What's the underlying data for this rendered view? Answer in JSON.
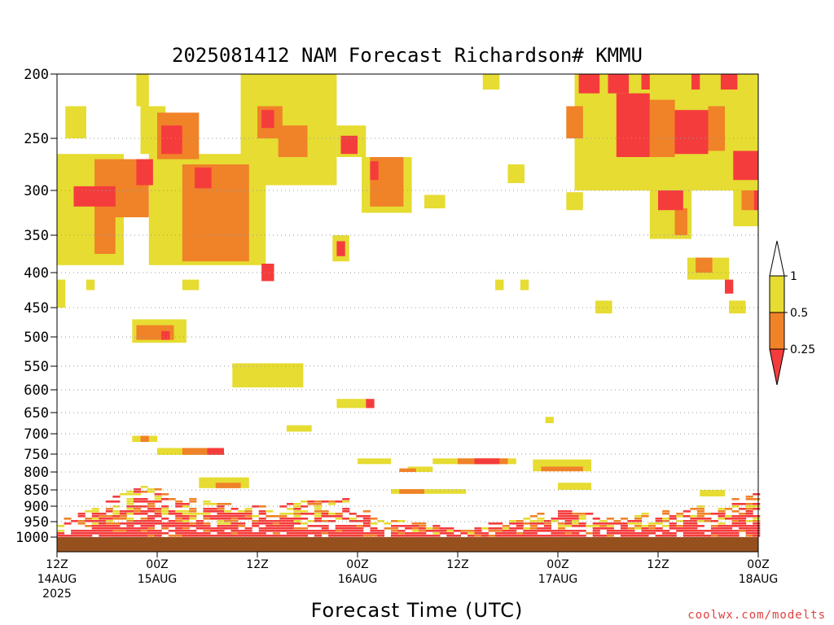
{
  "chart_data": {
    "type": "heatmap",
    "title": "2025081412 NAM Forecast Richardson# KMMU",
    "xlabel": "Forecast Time (UTC)",
    "credit": "coolwx.com/modelts",
    "y_levels": [
      200,
      250,
      300,
      350,
      400,
      450,
      500,
      550,
      600,
      650,
      700,
      750,
      800,
      850,
      900,
      950,
      1000
    ],
    "y_tick_labels": [
      "200",
      "250",
      "300",
      "350",
      "400",
      "450",
      "500",
      "550",
      "600",
      "650",
      "700",
      "750",
      "800",
      "850",
      "900",
      "950",
      "1000"
    ],
    "y_axis": "pressure (hPa), decreasing upward, non-linear",
    "x_range_hours": [
      0,
      84
    ],
    "x_ticks": [
      {
        "hour": 0,
        "l1": "12Z",
        "l2": "14AUG",
        "l3": "2025"
      },
      {
        "hour": 12,
        "l1": "00Z",
        "l2": "15AUG",
        "l3": ""
      },
      {
        "hour": 24,
        "l1": "12Z",
        "l2": "",
        "l3": ""
      },
      {
        "hour": 36,
        "l1": "00Z",
        "l2": "16AUG",
        "l3": ""
      },
      {
        "hour": 48,
        "l1": "12Z",
        "l2": "",
        "l3": ""
      },
      {
        "hour": 60,
        "l1": "00Z",
        "l2": "17AUG",
        "l3": ""
      },
      {
        "hour": 72,
        "l1": "12Z",
        "l2": "",
        "l3": ""
      },
      {
        "hour": 84,
        "l1": "00Z",
        "l2": "18AUG",
        "l3": ""
      }
    ],
    "grid": "dotted at pressure levels",
    "legend": {
      "position": "right",
      "bins": [
        {
          "range": "< 0.25",
          "color": "#f53c3c"
        },
        {
          "range": "0.25 - 0.5",
          "color": "#f08228"
        },
        {
          "range": "0.5 - 1",
          "color": "#e6dc32"
        }
      ],
      "labels": [
        "1",
        "0.5",
        "0.25"
      ]
    },
    "ground_color": "#96501e",
    "ground_top_hpa": 1000,
    "regions": [
      {
        "class": "yellow",
        "h0": 0,
        "h1": 8,
        "p0": 265,
        "p1": 390
      },
      {
        "class": "yellow",
        "h0": 1,
        "h1": 3.5,
        "p0": 225,
        "p1": 250
      },
      {
        "class": "orange",
        "h0": 4.5,
        "h1": 11,
        "p0": 270,
        "p1": 330
      },
      {
        "class": "orange",
        "h0": 4.5,
        "h1": 7,
        "p0": 330,
        "p1": 375
      },
      {
        "class": "red",
        "h0": 2,
        "h1": 7,
        "p0": 296,
        "p1": 318
      },
      {
        "class": "red",
        "h0": 9.5,
        "h1": 11.5,
        "p0": 270,
        "p1": 295
      },
      {
        "class": "yellow",
        "h0": 9.5,
        "h1": 11,
        "p0": 200,
        "p1": 225
      },
      {
        "class": "yellow",
        "h0": 10,
        "h1": 13,
        "p0": 225,
        "p1": 265
      },
      {
        "class": "yellow",
        "h0": 11,
        "h1": 25,
        "p0": 265,
        "p1": 390
      },
      {
        "class": "orange",
        "h0": 12,
        "h1": 17,
        "p0": 230,
        "p1": 270
      },
      {
        "class": "red",
        "h0": 12.5,
        "h1": 15,
        "p0": 240,
        "p1": 265
      },
      {
        "class": "orange",
        "h0": 15,
        "h1": 23,
        "p0": 275,
        "p1": 385
      },
      {
        "class": "red",
        "h0": 16.5,
        "h1": 18.5,
        "p0": 278,
        "p1": 298
      },
      {
        "class": "red",
        "h0": 24.5,
        "h1": 26,
        "p0": 388,
        "p1": 412
      },
      {
        "class": "yellow",
        "h0": 22,
        "h1": 33.5,
        "p0": 200,
        "p1": 295
      },
      {
        "class": "orange",
        "h0": 24,
        "h1": 27,
        "p0": 225,
        "p1": 250
      },
      {
        "class": "red",
        "h0": 24.5,
        "h1": 26,
        "p0": 228,
        "p1": 242
      },
      {
        "class": "orange",
        "h0": 26.5,
        "h1": 30,
        "p0": 240,
        "p1": 268
      },
      {
        "class": "yellow",
        "h0": 33.5,
        "h1": 37,
        "p0": 240,
        "p1": 268
      },
      {
        "class": "red",
        "h0": 34,
        "h1": 36,
        "p0": 248,
        "p1": 265
      },
      {
        "class": "yellow",
        "h0": 36.5,
        "h1": 42.5,
        "p0": 268,
        "p1": 325
      },
      {
        "class": "orange",
        "h0": 37.5,
        "h1": 41.5,
        "p0": 268,
        "p1": 318
      },
      {
        "class": "red",
        "h0": 37.5,
        "h1": 38.5,
        "p0": 272,
        "p1": 290
      },
      {
        "class": "yellow",
        "h0": 44,
        "h1": 46.5,
        "p0": 305,
        "p1": 320
      },
      {
        "class": "yellow",
        "h0": 51,
        "h1": 53,
        "p0": 200,
        "p1": 212
      },
      {
        "class": "yellow",
        "h0": 54,
        "h1": 56,
        "p0": 275,
        "p1": 293
      },
      {
        "class": "yellow",
        "h0": 33,
        "h1": 35,
        "p0": 350,
        "p1": 385
      },
      {
        "class": "red",
        "h0": 33.5,
        "h1": 34.5,
        "p0": 358,
        "p1": 378
      },
      {
        "class": "yellow",
        "h0": 61,
        "h1": 63,
        "p0": 302,
        "p1": 322
      },
      {
        "class": "orange",
        "h0": 61,
        "h1": 63,
        "p0": 225,
        "p1": 250
      },
      {
        "class": "yellow",
        "h0": 62,
        "h1": 84,
        "p0": 200,
        "p1": 300
      },
      {
        "class": "red",
        "h0": 62.5,
        "h1": 65,
        "p0": 200,
        "p1": 215
      },
      {
        "class": "red",
        "h0": 66,
        "h1": 68.5,
        "p0": 200,
        "p1": 215
      },
      {
        "class": "red",
        "h0": 67,
        "h1": 71,
        "p0": 215,
        "p1": 268
      },
      {
        "class": "orange",
        "h0": 71,
        "h1": 74,
        "p0": 220,
        "p1": 268
      },
      {
        "class": "red",
        "h0": 74,
        "h1": 78,
        "p0": 228,
        "p1": 265
      },
      {
        "class": "orange",
        "h0": 78,
        "h1": 80,
        "p0": 225,
        "p1": 262
      },
      {
        "class": "red",
        "h0": 79.5,
        "h1": 81.5,
        "p0": 200,
        "p1": 212
      },
      {
        "class": "red",
        "h0": 81,
        "h1": 84,
        "p0": 262,
        "p1": 290
      },
      {
        "class": "red",
        "h0": 76,
        "h1": 77,
        "p0": 200,
        "p1": 212
      },
      {
        "class": "red",
        "h0": 70,
        "h1": 71,
        "p0": 200,
        "p1": 212
      },
      {
        "class": "yellow",
        "h0": 71,
        "h1": 76,
        "p0": 300,
        "p1": 355
      },
      {
        "class": "red",
        "h0": 72,
        "h1": 75,
        "p0": 300,
        "p1": 322
      },
      {
        "class": "orange",
        "h0": 74,
        "h1": 75.5,
        "p0": 320,
        "p1": 350
      },
      {
        "class": "yellow",
        "h0": 81,
        "h1": 84,
        "p0": 300,
        "p1": 340
      },
      {
        "class": "orange",
        "h0": 82,
        "h1": 84,
        "p0": 300,
        "p1": 322
      },
      {
        "class": "red",
        "h0": 83.5,
        "h1": 84,
        "p0": 300,
        "p1": 322
      },
      {
        "class": "yellow",
        "h0": 0,
        "h1": 1,
        "p0": 410,
        "p1": 450
      },
      {
        "class": "yellow",
        "h0": 3.5,
        "h1": 4.5,
        "p0": 410,
        "p1": 425
      },
      {
        "class": "yellow",
        "h0": 15,
        "h1": 17,
        "p0": 410,
        "p1": 425
      },
      {
        "class": "yellow",
        "h0": 75.5,
        "h1": 80.5,
        "p0": 380,
        "p1": 410
      },
      {
        "class": "orange",
        "h0": 76.5,
        "h1": 78.5,
        "p0": 380,
        "p1": 400
      },
      {
        "class": "red",
        "h0": 80,
        "h1": 81,
        "p0": 410,
        "p1": 430
      },
      {
        "class": "yellow",
        "h0": 80.5,
        "h1": 82.5,
        "p0": 440,
        "p1": 460
      },
      {
        "class": "yellow",
        "h0": 64.5,
        "h1": 66.5,
        "p0": 440,
        "p1": 460
      },
      {
        "class": "yellow",
        "h0": 52.5,
        "h1": 53.5,
        "p0": 410,
        "p1": 425
      },
      {
        "class": "yellow",
        "h0": 55.5,
        "h1": 56.5,
        "p0": 410,
        "p1": 425
      },
      {
        "class": "yellow",
        "h0": 9,
        "h1": 15.5,
        "p0": 470,
        "p1": 510
      },
      {
        "class": "orange",
        "h0": 9.5,
        "h1": 14,
        "p0": 480,
        "p1": 505
      },
      {
        "class": "red",
        "h0": 12.5,
        "h1": 13.5,
        "p0": 490,
        "p1": 505
      },
      {
        "class": "yellow",
        "h0": 21,
        "h1": 29.5,
        "p0": 545,
        "p1": 595
      },
      {
        "class": "yellow",
        "h0": 33.5,
        "h1": 37,
        "p0": 620,
        "p1": 640
      },
      {
        "class": "red",
        "h0": 37,
        "h1": 38,
        "p0": 620,
        "p1": 640
      },
      {
        "class": "yellow",
        "h0": 27.5,
        "h1": 30.5,
        "p0": 680,
        "p1": 695
      },
      {
        "class": "yellow",
        "h0": 58.5,
        "h1": 59.5,
        "p0": 660,
        "p1": 675
      },
      {
        "class": "yellow",
        "h0": 9,
        "h1": 12,
        "p0": 705,
        "p1": 720
      },
      {
        "class": "orange",
        "h0": 10,
        "h1": 11,
        "p0": 705,
        "p1": 720
      },
      {
        "class": "yellow",
        "h0": 12,
        "h1": 20,
        "p0": 735,
        "p1": 752
      },
      {
        "class": "orange",
        "h0": 15,
        "h1": 18,
        "p0": 735,
        "p1": 752
      },
      {
        "class": "red",
        "h0": 18,
        "h1": 20,
        "p0": 735,
        "p1": 752
      },
      {
        "class": "yellow",
        "h0": 36,
        "h1": 40,
        "p0": 762,
        "p1": 778
      },
      {
        "class": "yellow",
        "h0": 45,
        "h1": 55,
        "p0": 762,
        "p1": 778
      },
      {
        "class": "orange",
        "h0": 48,
        "h1": 54,
        "p0": 762,
        "p1": 778
      },
      {
        "class": "red",
        "h0": 50,
        "h1": 53,
        "p0": 762,
        "p1": 778
      },
      {
        "class": "yellow",
        "h0": 57,
        "h1": 64,
        "p0": 765,
        "p1": 798
      },
      {
        "class": "orange",
        "h0": 58,
        "h1": 63,
        "p0": 785,
        "p1": 798
      },
      {
        "class": "yellow",
        "h0": 42,
        "h1": 45,
        "p0": 785,
        "p1": 800
      },
      {
        "class": "orange",
        "h0": 41,
        "h1": 43,
        "p0": 790,
        "p1": 800
      },
      {
        "class": "yellow",
        "h0": 17,
        "h1": 23,
        "p0": 815,
        "p1": 845
      },
      {
        "class": "orange",
        "h0": 19,
        "h1": 22,
        "p0": 830,
        "p1": 845
      },
      {
        "class": "yellow",
        "h0": 40,
        "h1": 49,
        "p0": 848,
        "p1": 862
      },
      {
        "class": "orange",
        "h0": 41,
        "h1": 44,
        "p0": 848,
        "p1": 862
      },
      {
        "class": "yellow",
        "h0": 60,
        "h1": 64,
        "p0": 830,
        "p1": 850
      },
      {
        "class": "yellow",
        "h0": 77,
        "h1": 80,
        "p0": 850,
        "p1": 870
      }
    ],
    "boundary_layer": {
      "note": "mixed red/orange/yellow speckle in the lowest levels above the ground",
      "top_hpa_by_hour": [
        {
          "hour": 0,
          "p": 945
        },
        {
          "hour": 6,
          "p": 870
        },
        {
          "hour": 10,
          "p": 835
        },
        {
          "hour": 14,
          "p": 860
        },
        {
          "hour": 18,
          "p": 880
        },
        {
          "hour": 24,
          "p": 885
        },
        {
          "hour": 30,
          "p": 880
        },
        {
          "hour": 34,
          "p": 870
        },
        {
          "hour": 38,
          "p": 930
        },
        {
          "hour": 44,
          "p": 955
        },
        {
          "hour": 48,
          "p": 965
        },
        {
          "hour": 52,
          "p": 950
        },
        {
          "hour": 56,
          "p": 930
        },
        {
          "hour": 60,
          "p": 905
        },
        {
          "hour": 66,
          "p": 925
        },
        {
          "hour": 72,
          "p": 915
        },
        {
          "hour": 78,
          "p": 890
        },
        {
          "hour": 84,
          "p": 855
        }
      ]
    }
  }
}
